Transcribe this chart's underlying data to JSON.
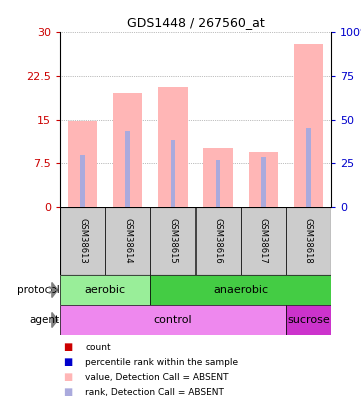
{
  "title": "GDS1448 / 267560_at",
  "samples": [
    "GSM38613",
    "GSM38614",
    "GSM38615",
    "GSM38616",
    "GSM38617",
    "GSM38618"
  ],
  "bar_values": [
    14.8,
    19.5,
    20.5,
    10.2,
    9.5,
    28.0
  ],
  "rank_values": [
    9.0,
    13.0,
    11.5,
    8.0,
    8.5,
    13.5
  ],
  "left_ylim": [
    0,
    30
  ],
  "right_ylim": [
    0,
    100
  ],
  "left_yticks": [
    0,
    7.5,
    15,
    22.5,
    30
  ],
  "right_yticks": [
    0,
    25,
    50,
    75,
    100
  ],
  "bar_color": "#ffb6b6",
  "rank_color": "#aaaadd",
  "count_color": "#cc0000",
  "percentile_color": "#0000cc",
  "protocol_aerobic_color": "#99ee99",
  "protocol_anaerobic_color": "#44cc44",
  "agent_control_color": "#ee88ee",
  "agent_sucrose_color": "#cc33cc",
  "sample_box_color": "#cccccc",
  "protocol_labels": [
    [
      "aerobic",
      0,
      2
    ],
    [
      "anaerobic",
      2,
      6
    ]
  ],
  "agent_labels": [
    [
      "control",
      0,
      5
    ],
    [
      "sucrose",
      5,
      6
    ]
  ],
  "legend_items": [
    {
      "color": "#cc0000",
      "label": "count"
    },
    {
      "color": "#0000cc",
      "label": "percentile rank within the sample"
    },
    {
      "color": "#ffb6b6",
      "label": "value, Detection Call = ABSENT"
    },
    {
      "color": "#aaaadd",
      "label": "rank, Detection Call = ABSENT"
    }
  ]
}
